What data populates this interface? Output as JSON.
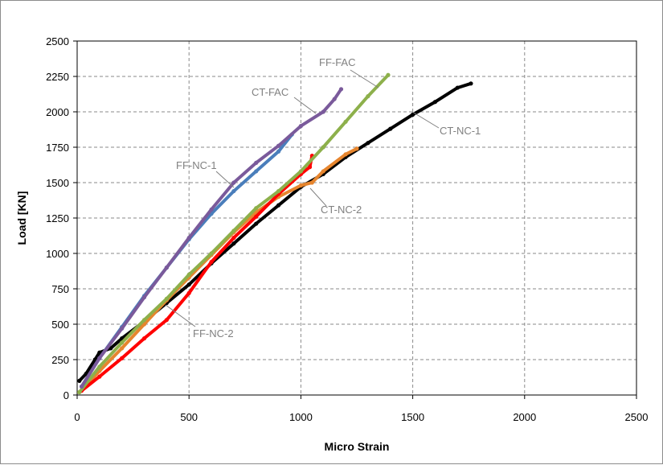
{
  "chart_data": {
    "type": "scatter",
    "xlabel": "Micro Strain",
    "ylabel": "Load [KN]",
    "xlim": [
      0,
      2500
    ],
    "ylim": [
      0,
      2500
    ],
    "x_ticks": [
      "0",
      "500",
      "1000",
      "1500",
      "2000",
      "2500"
    ],
    "y_ticks": [
      "0",
      "250",
      "500",
      "750",
      "1000",
      "1250",
      "1500",
      "1750",
      "2000",
      "2250",
      "2500"
    ],
    "grid": "dashed",
    "annotations": [
      {
        "text": "FF-FAC",
        "series": "FF-FAC"
      },
      {
        "text": "CT-FAC",
        "series": "CT-FAC"
      },
      {
        "text": "CT-NC-1",
        "series": "CT-NC-1"
      },
      {
        "text": "FF-NC-1",
        "series": "FF-NC-1"
      },
      {
        "text": "CT-NC-2",
        "series": "CT-NC-2"
      },
      {
        "text": "FF-NC-2",
        "series": "FF-NC-2"
      }
    ],
    "series": [
      {
        "name": "CT-NC-1",
        "color": "#000000",
        "points": [
          [
            10,
            100
          ],
          [
            40,
            150
          ],
          [
            80,
            250
          ],
          [
            100,
            300
          ],
          [
            150,
            330
          ],
          [
            200,
            400
          ],
          [
            300,
            520
          ],
          [
            400,
            650
          ],
          [
            500,
            780
          ],
          [
            600,
            930
          ],
          [
            700,
            1070
          ],
          [
            800,
            1210
          ],
          [
            900,
            1340
          ],
          [
            1000,
            1470
          ],
          [
            1100,
            1560
          ],
          [
            1200,
            1680
          ],
          [
            1300,
            1780
          ],
          [
            1400,
            1880
          ],
          [
            1500,
            1980
          ],
          [
            1600,
            2070
          ],
          [
            1700,
            2170
          ],
          [
            1760,
            2200
          ]
        ]
      },
      {
        "name": "CT-NC-2",
        "color": "#e6852e",
        "points": [
          [
            10,
            20
          ],
          [
            100,
            170
          ],
          [
            200,
            330
          ],
          [
            300,
            500
          ],
          [
            400,
            670
          ],
          [
            500,
            830
          ],
          [
            600,
            990
          ],
          [
            700,
            1150
          ],
          [
            800,
            1290
          ],
          [
            900,
            1400
          ],
          [
            1000,
            1480
          ],
          [
            1050,
            1500
          ],
          [
            1100,
            1580
          ],
          [
            1200,
            1700
          ],
          [
            1250,
            1740
          ]
        ]
      },
      {
        "name": "FF-NC-2",
        "color": "#ff0000",
        "points": [
          [
            20,
            30
          ],
          [
            100,
            130
          ],
          [
            200,
            260
          ],
          [
            300,
            400
          ],
          [
            400,
            530
          ],
          [
            500,
            720
          ],
          [
            600,
            940
          ],
          [
            700,
            1110
          ],
          [
            800,
            1260
          ],
          [
            900,
            1420
          ],
          [
            1000,
            1560
          ],
          [
            1040,
            1610
          ],
          [
            1050,
            1690
          ]
        ]
      },
      {
        "name": "FF-FAC",
        "color": "#8db04b",
        "points": [
          [
            10,
            20
          ],
          [
            100,
            200
          ],
          [
            200,
            370
          ],
          [
            300,
            530
          ],
          [
            400,
            680
          ],
          [
            500,
            850
          ],
          [
            600,
            1000
          ],
          [
            700,
            1160
          ],
          [
            800,
            1320
          ],
          [
            900,
            1440
          ],
          [
            1000,
            1580
          ],
          [
            1100,
            1750
          ],
          [
            1200,
            1930
          ],
          [
            1300,
            2110
          ],
          [
            1390,
            2260
          ]
        ]
      },
      {
        "name": "FF-NC-1",
        "color": "#4a7ebb",
        "points": [
          [
            20,
            60
          ],
          [
            100,
            260
          ],
          [
            200,
            480
          ],
          [
            300,
            700
          ],
          [
            400,
            900
          ],
          [
            500,
            1100
          ],
          [
            600,
            1280
          ],
          [
            700,
            1440
          ],
          [
            800,
            1580
          ],
          [
            900,
            1720
          ],
          [
            960,
            1840
          ]
        ]
      },
      {
        "name": "CT-FAC",
        "color": "#7a5a9b",
        "points": [
          [
            20,
            60
          ],
          [
            100,
            260
          ],
          [
            200,
            470
          ],
          [
            300,
            690
          ],
          [
            400,
            900
          ],
          [
            500,
            1110
          ],
          [
            600,
            1310
          ],
          [
            700,
            1500
          ],
          [
            800,
            1640
          ],
          [
            900,
            1760
          ],
          [
            1000,
            1900
          ],
          [
            1100,
            2000
          ],
          [
            1150,
            2090
          ],
          [
            1180,
            2160
          ]
        ]
      }
    ]
  }
}
